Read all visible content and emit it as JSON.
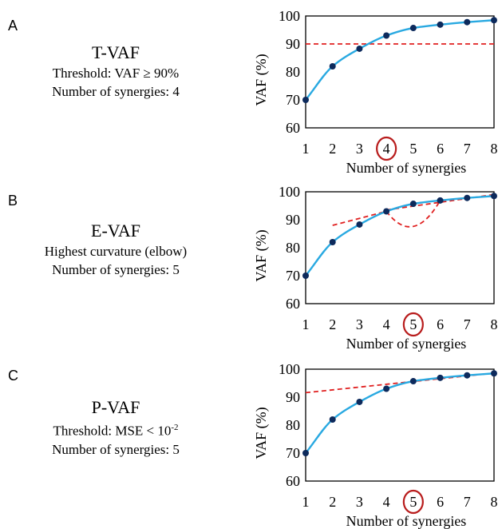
{
  "panels": [
    {
      "letter": "A",
      "method": "T-VAF",
      "criterion": "Threshold: VAF ≥ 90%",
      "criterion_sup": "",
      "result": "Number of synergies: 4"
    },
    {
      "letter": "B",
      "method": "E-VAF",
      "criterion": "Highest curvature (elbow)",
      "criterion_sup": "",
      "result": "Number of synergies: 5"
    },
    {
      "letter": "C",
      "method": "P-VAF",
      "criterion": "Threshold: MSE < 10",
      "criterion_sup": "-2",
      "result": "Number of synergies: 5"
    }
  ],
  "colors": {
    "curve": "#29a9e1",
    "points": "#0d2a5c",
    "reference": "#e02020",
    "circle": "#b81c1c"
  },
  "chart_data": [
    {
      "type": "line",
      "xlabel": "Number of synergies",
      "ylabel": "VAF (%)",
      "x": [
        1,
        2,
        3,
        4,
        5,
        6,
        7,
        8
      ],
      "xlim": [
        1,
        8
      ],
      "ylim": [
        60,
        100
      ],
      "yticks": [
        60,
        70,
        80,
        90,
        100
      ],
      "series": [
        {
          "values": [
            70,
            82,
            88.3,
            93,
            95.7,
            96.9,
            97.8,
            98.5
          ]
        }
      ],
      "reference": {
        "kind": "hline",
        "y": 90
      },
      "selected_x": 4,
      "grid": false
    },
    {
      "type": "line",
      "xlabel": "Number of synergies",
      "ylabel": "VAF (%)",
      "x": [
        1,
        2,
        3,
        4,
        5,
        6,
        7,
        8
      ],
      "xlim": [
        1,
        8
      ],
      "ylim": [
        60,
        100
      ],
      "yticks": [
        60,
        70,
        80,
        90,
        100
      ],
      "series": [
        {
          "values": [
            70,
            82,
            88.3,
            93,
            95.7,
            96.9,
            97.8,
            98.5
          ]
        }
      ],
      "reference": {
        "kind": "elbow",
        "line1": [
          [
            2,
            88
          ],
          [
            4,
            93
          ]
        ],
        "line2": [
          [
            4,
            93.5
          ],
          [
            8,
            99
          ]
        ],
        "arc_vertex": [
          5,
          86.3
        ]
      },
      "selected_x": 5,
      "grid": false
    },
    {
      "type": "line",
      "xlabel": "Number of synergies",
      "ylabel": "VAF (%)",
      "x": [
        1,
        2,
        3,
        4,
        5,
        6,
        7,
        8
      ],
      "xlim": [
        1,
        8
      ],
      "ylim": [
        60,
        100
      ],
      "yticks": [
        60,
        70,
        80,
        90,
        100
      ],
      "series": [
        {
          "values": [
            70,
            82,
            88.3,
            93,
            95.7,
            96.9,
            97.8,
            98.5
          ]
        }
      ],
      "reference": {
        "kind": "line",
        "points": [
          [
            1,
            91.6
          ],
          [
            8,
            98.6
          ]
        ]
      },
      "selected_x": 5,
      "grid": false
    }
  ]
}
